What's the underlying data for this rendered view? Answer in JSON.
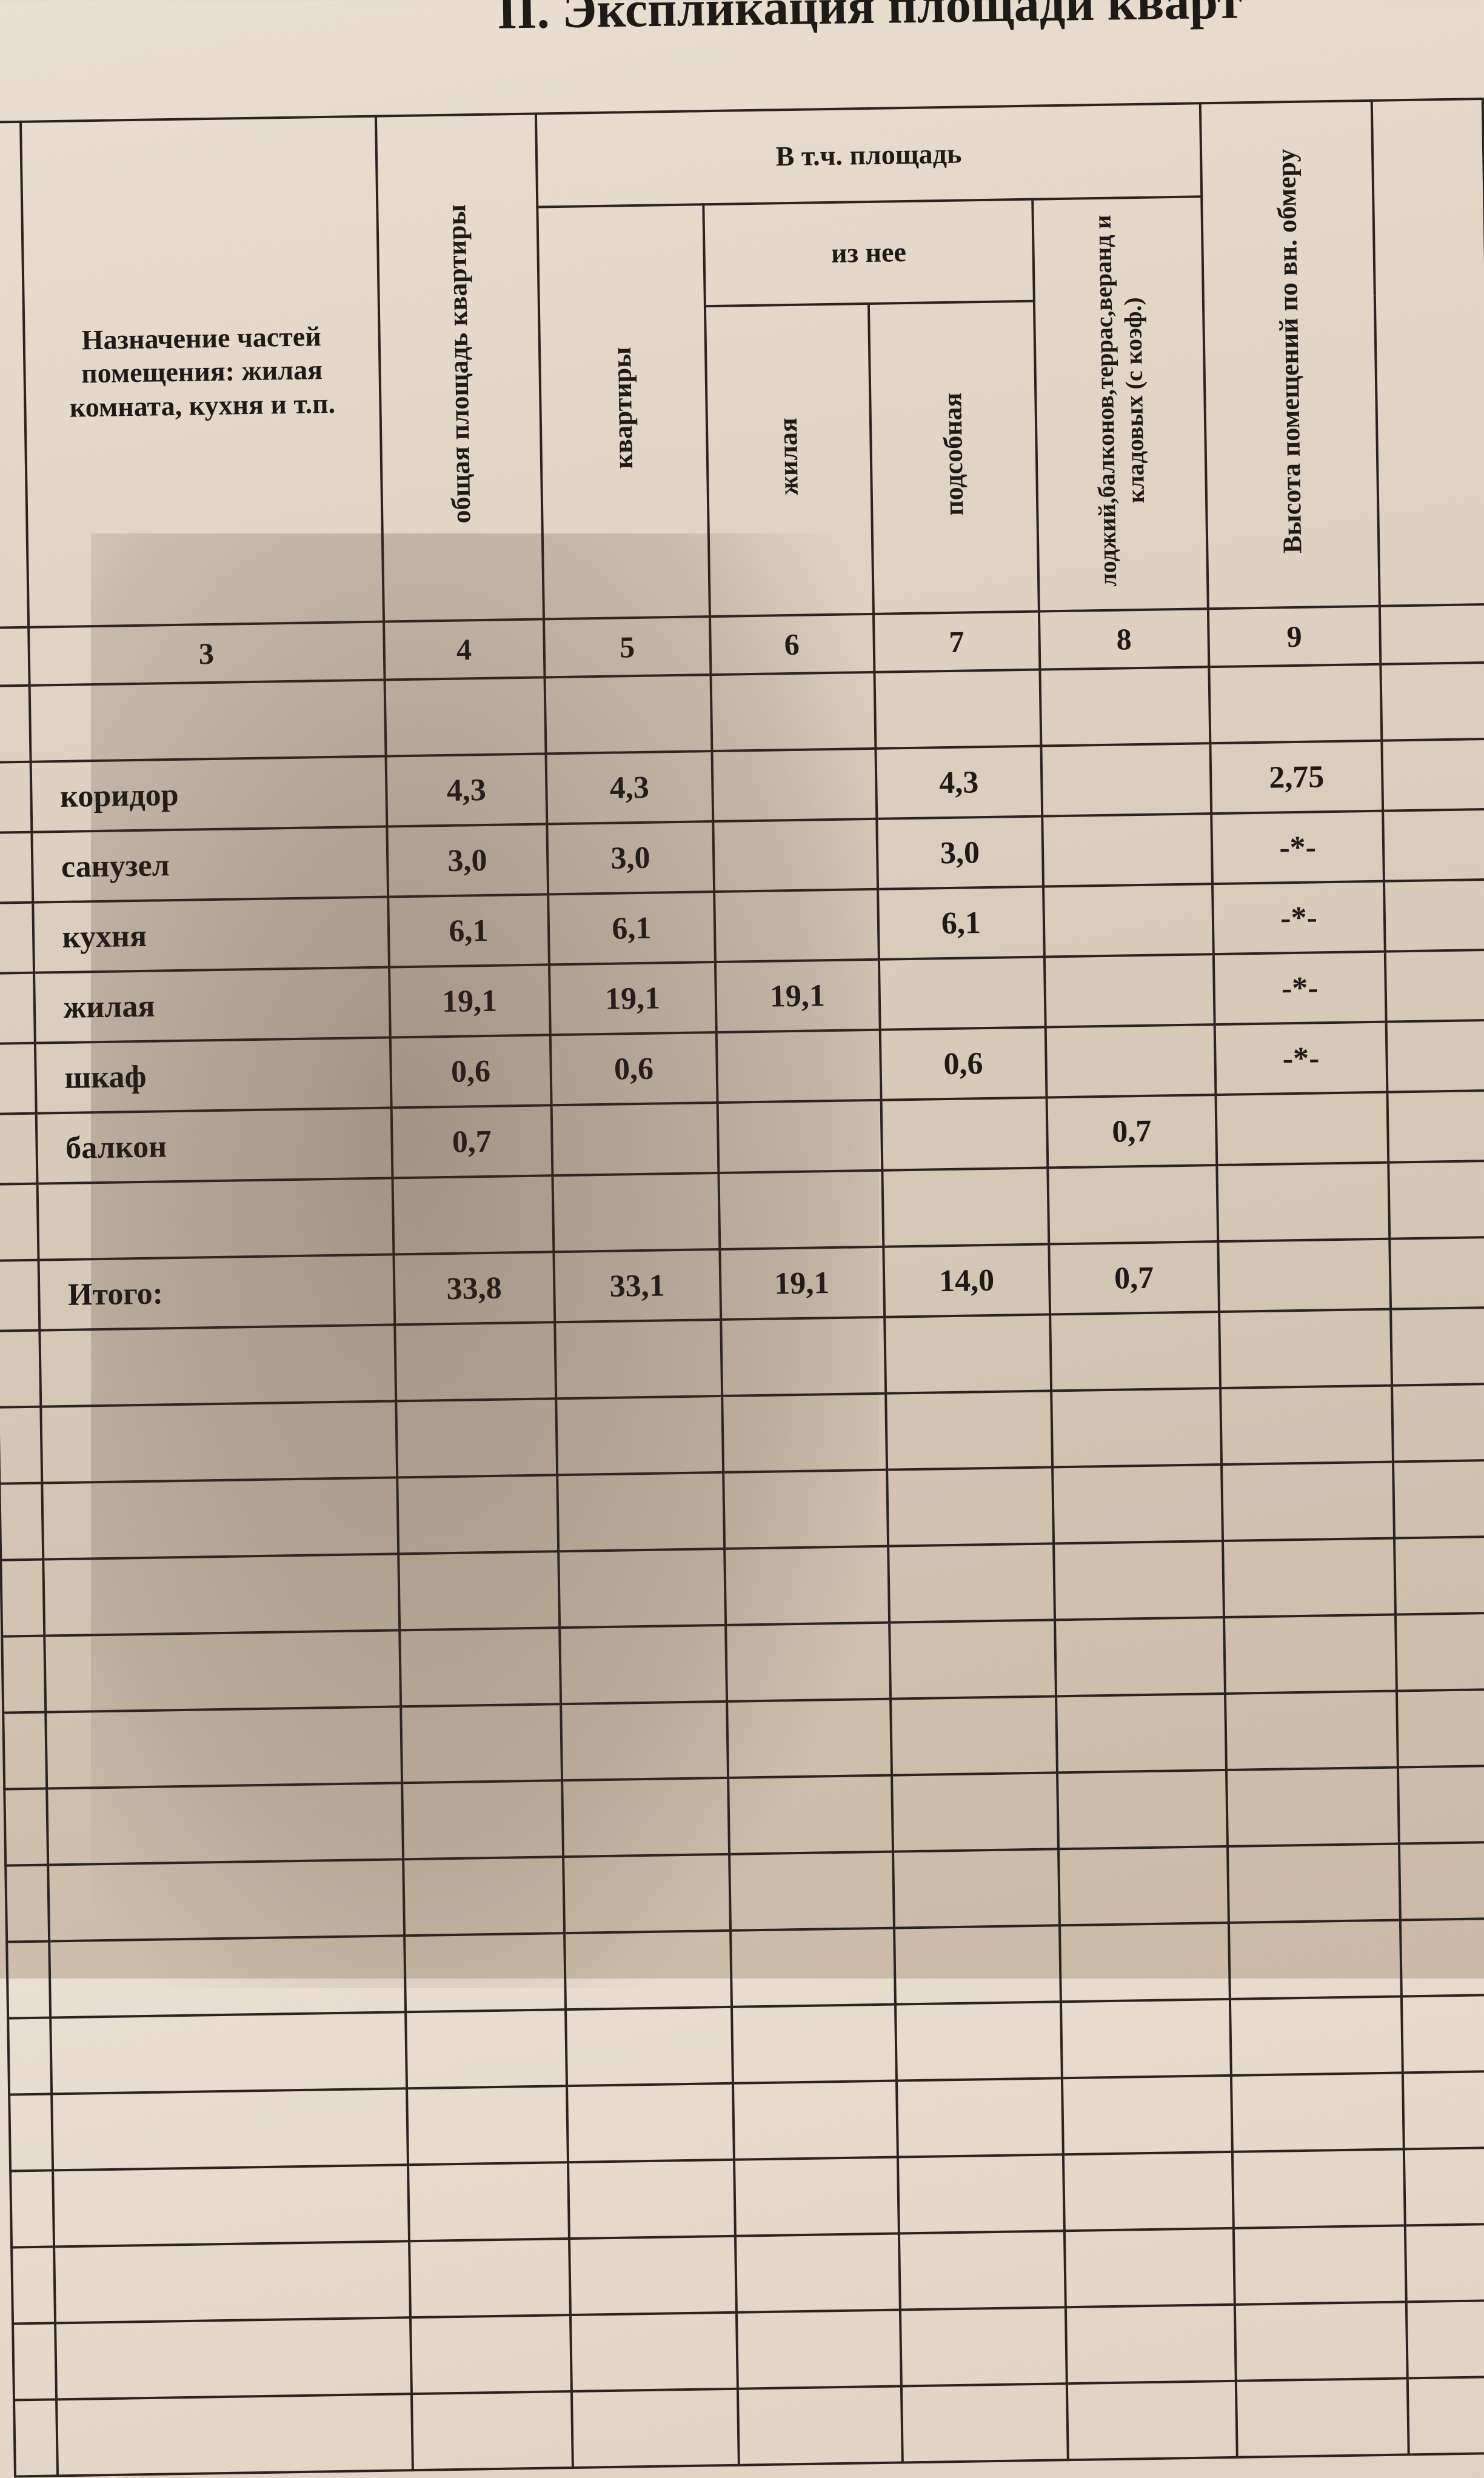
{
  "title": "II. Экспликация площади кварт",
  "header": {
    "col3": "Назначение частей помещения: жилая комната, кухня и т.п.",
    "col4": "общая площадь квартиры",
    "group": "В т.ч. площадь",
    "col5": "квартиры",
    "subgroup": "из нее",
    "col6": "жилая",
    "col7": "подсобная",
    "col8": "лоджий,балконов,террас,веранд и кладовых (с коэф.)",
    "col9": "Высота помещений по вн. обмеру"
  },
  "column_numbers": [
    "3",
    "4",
    "5",
    "6",
    "7",
    "8",
    "9"
  ],
  "rows": [
    {
      "name": "коридор",
      "c4": "4,3",
      "c5": "4,3",
      "c6": "",
      "c7": "4,3",
      "c8": "",
      "c9": "2,75"
    },
    {
      "name": "санузел",
      "c4": "3,0",
      "c5": "3,0",
      "c6": "",
      "c7": "3,0",
      "c8": "",
      "c9": "-*-"
    },
    {
      "name": "кухня",
      "c4": "6,1",
      "c5": "6,1",
      "c6": "",
      "c7": "6,1",
      "c8": "",
      "c9": "-*-"
    },
    {
      "name": "жилая",
      "c4": "19,1",
      "c5": "19,1",
      "c6": "19,1",
      "c7": "",
      "c8": "",
      "c9": "-*-"
    },
    {
      "name": "шкаф",
      "c4": "0,6",
      "c5": "0,6",
      "c6": "",
      "c7": "0,6",
      "c8": "",
      "c9": "-*-"
    },
    {
      "name": "балкон",
      "c4": "0,7",
      "c5": "",
      "c6": "",
      "c7": "",
      "c8": "0,7",
      "c9": ""
    }
  ],
  "total": {
    "name": "Итого:",
    "c4": "33,8",
    "c5": "33,1",
    "c6": "19,1",
    "c7": "14,0",
    "c8": "0,7",
    "c9": ""
  }
}
